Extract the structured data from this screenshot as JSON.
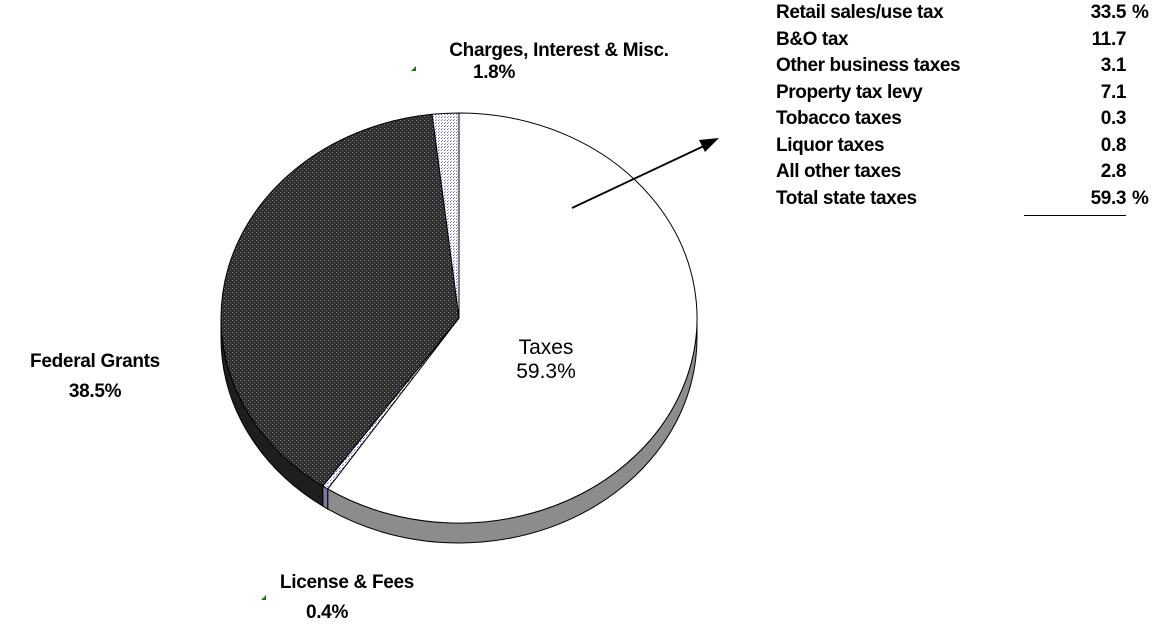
{
  "chart_data": {
    "type": "pie",
    "slices": [
      {
        "label": "Taxes",
        "value": 59.3,
        "display": "59.3%",
        "color": "#ffffff",
        "pattern": "none"
      },
      {
        "label": "License & Fees",
        "value": 0.4,
        "display": "0.4%",
        "color": "#dcdcf0",
        "pattern": "dotted"
      },
      {
        "label": "Federal Grants",
        "value": 38.5,
        "display": "38.5%",
        "color": "#3c3c3c",
        "pattern": "dark-dotted"
      },
      {
        "label": "Charges, Interest & Misc.",
        "value": 1.8,
        "display": "1.8%",
        "color": "#dcdcf0",
        "pattern": "dotted"
      }
    ],
    "style": "3d-tilted",
    "legend": "none",
    "breakdown": {
      "rows": [
        {
          "name": "Retail sales/use tax",
          "value": "33.5",
          "unit": "%"
        },
        {
          "name": "B&O tax",
          "value": "11.7",
          "unit": ""
        },
        {
          "name": "Other business taxes",
          "value": "3.1",
          "unit": ""
        },
        {
          "name": "Property tax levy",
          "value": "7.1",
          "unit": ""
        },
        {
          "name": "Tobacco taxes",
          "value": "0.3",
          "unit": ""
        },
        {
          "name": "Liquor taxes",
          "value": "0.8",
          "unit": ""
        },
        {
          "name": "All other taxes",
          "value": "2.8",
          "unit": ""
        }
      ],
      "total": {
        "name": "Total state taxes",
        "value": "59.3",
        "unit": "%"
      }
    }
  }
}
